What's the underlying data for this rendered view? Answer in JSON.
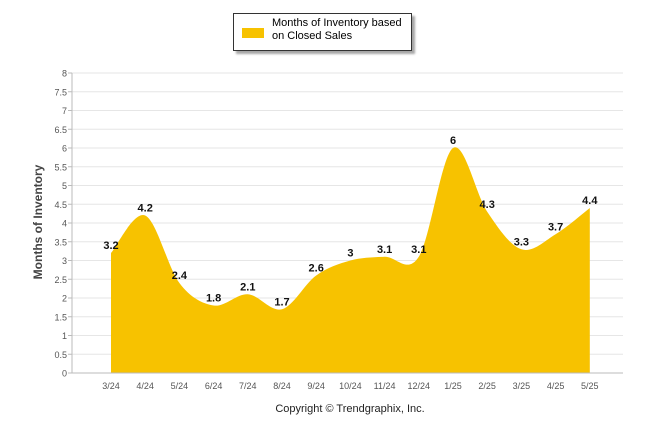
{
  "chart_data": {
    "type": "area",
    "categories": [
      "3/24",
      "4/24",
      "5/24",
      "6/24",
      "7/24",
      "8/24",
      "9/24",
      "10/24",
      "11/24",
      "12/24",
      "1/25",
      "2/25",
      "3/25",
      "4/25",
      "5/25"
    ],
    "series": [
      {
        "name": "Months of Inventory based on Closed Sales",
        "values": [
          3.2,
          4.2,
          2.4,
          1.8,
          2.1,
          1.7,
          2.6,
          3,
          3.1,
          3.1,
          6,
          4.3,
          3.3,
          3.7,
          4.4
        ]
      }
    ],
    "data_labels": [
      "3.2",
      "4.2",
      "2.4",
      "1.8",
      "2.1",
      "1.7",
      "2.6",
      "3",
      "3.1",
      "3.1",
      "6",
      "4.3",
      "3.3",
      "3.7",
      "4.4"
    ],
    "ylabel": "Months of Inventory",
    "ylim": [
      0,
      8
    ],
    "yticks": [
      "0",
      "0.5",
      "1",
      "1.5",
      "2",
      "2.5",
      "3",
      "3.5",
      "4",
      "4.5",
      "5",
      "5.5",
      "6",
      "6.5",
      "7",
      "7.5",
      "8"
    ],
    "grid": true,
    "legend_position": "top-center",
    "fill_color": "#F7C200"
  },
  "footer": {
    "copyright": "Copyright © Trendgraphix, Inc."
  }
}
